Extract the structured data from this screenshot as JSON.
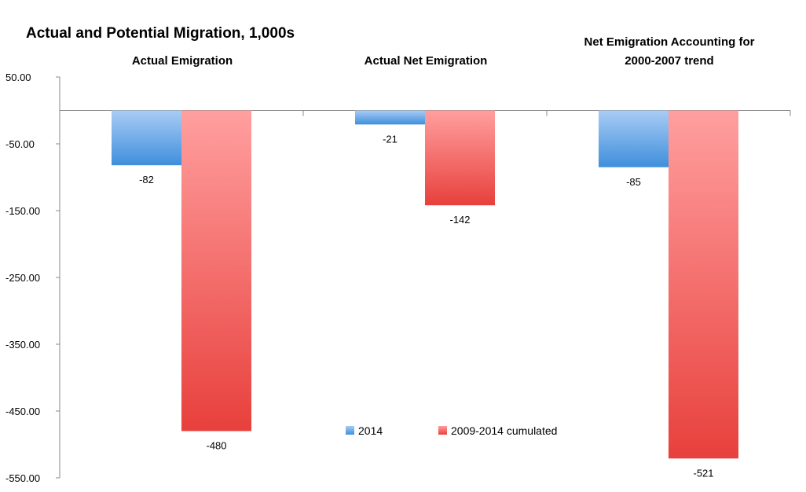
{
  "chart_data": {
    "type": "bar",
    "title": "Actual and Potential Migration, 1,000s",
    "categories": [
      "Actual Emigration",
      "Actual Net Emigration",
      "Net Emigration Accounting for 2000-2007 trend"
    ],
    "category_lines": [
      [
        "Actual Emigration"
      ],
      [
        "Actual Net Emigration"
      ],
      [
        "Net Emigration Accounting for",
        "2000-2007 trend"
      ]
    ],
    "series": [
      {
        "name": "2014",
        "values": [
          -82,
          -21,
          -85
        ],
        "color_top": "#a9ccf5",
        "color_bottom": "#3f8fdc"
      },
      {
        "name": "2009-2014 cumulated",
        "values": [
          -480,
          -142,
          -521
        ],
        "color_top": "#ff9f9f",
        "color_bottom": "#e8403c"
      }
    ],
    "data_labels": [
      [
        "-82",
        "-21",
        "-85"
      ],
      [
        "-480",
        "-142",
        "-521"
      ]
    ],
    "ylim": [
      -550,
      50
    ],
    "yticks": [
      50,
      -50,
      -150,
      -250,
      -350,
      -450,
      -550
    ],
    "ytick_labels": [
      "50.00",
      "-50.00",
      "-150.00",
      "-250.00",
      "-350.00",
      "-450.00",
      "-550.00"
    ],
    "xlabel": "",
    "ylabel": "",
    "grid": false,
    "legend_position": "bottom-center"
  }
}
